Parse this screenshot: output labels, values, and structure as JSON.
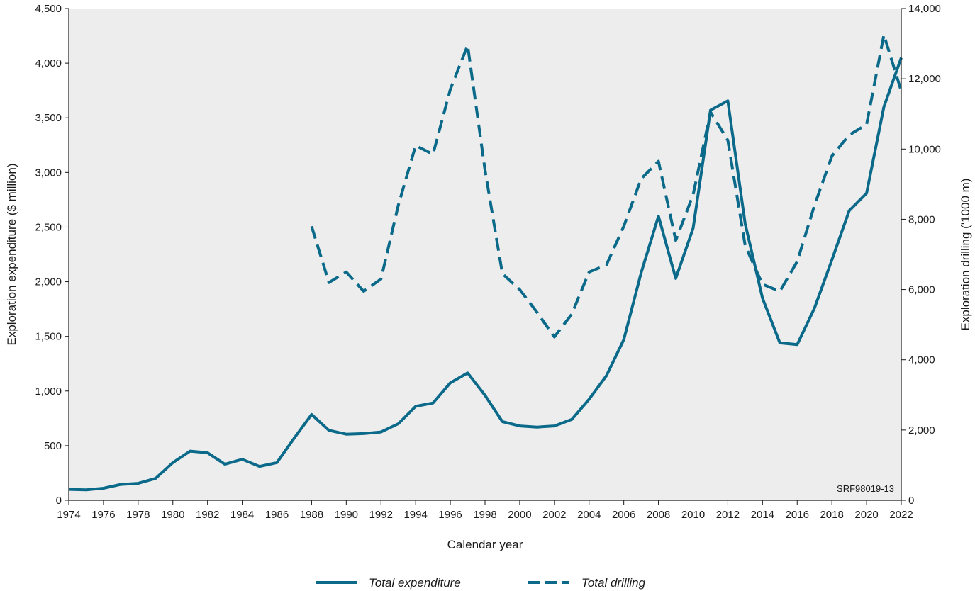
{
  "chart_data": {
    "type": "line",
    "title": "",
    "xlabel": "Calendar year",
    "ylabel_left": "Exploration expenditure ($ million)",
    "ylabel_right": "Exploration drilling ('1000 m)",
    "xlim": [
      1974,
      2022
    ],
    "ylim_left": [
      0,
      4500
    ],
    "ylim_right": [
      0,
      14000
    ],
    "x_ticks": [
      1974,
      1976,
      1978,
      1980,
      1982,
      1984,
      1986,
      1988,
      1990,
      1992,
      1994,
      1996,
      1998,
      2000,
      2002,
      2004,
      2006,
      2008,
      2010,
      2012,
      2014,
      2016,
      2018,
      2020,
      2022
    ],
    "y_ticks_left": [
      "0",
      "500",
      "1,000",
      "1,500",
      "2,000",
      "2,500",
      "3,000",
      "3,500",
      "4,000",
      "4,500"
    ],
    "y_ticks_left_values": [
      0,
      500,
      1000,
      1500,
      2000,
      2500,
      3000,
      3500,
      4000,
      4500
    ],
    "y_ticks_right": [
      "0",
      "2,000",
      "4,000",
      "6,000",
      "8,000",
      "10,000",
      "12,000",
      "14,000"
    ],
    "y_ticks_right_values": [
      0,
      2000,
      4000,
      6000,
      8000,
      10000,
      12000,
      14000
    ],
    "grid": false,
    "legend_position": "bottom-center",
    "series": [
      {
        "name": "Total expenditure",
        "axis": "left",
        "style": "solid",
        "color": "#0b6a8a",
        "x": [
          1974,
          1975,
          1976,
          1977,
          1978,
          1979,
          1980,
          1981,
          1982,
          1983,
          1984,
          1985,
          1986,
          1987,
          1988,
          1989,
          1990,
          1991,
          1992,
          1993,
          1994,
          1995,
          1996,
          1997,
          1998,
          1999,
          2000,
          2001,
          2002,
          2003,
          2004,
          2005,
          2006,
          2007,
          2008,
          2009,
          2010,
          2011,
          2012,
          2013,
          2014,
          2015,
          2016,
          2017,
          2018,
          2019,
          2020,
          2021,
          2022
        ],
        "values": [
          100,
          95,
          110,
          145,
          155,
          200,
          345,
          450,
          435,
          330,
          375,
          310,
          345,
          570,
          785,
          640,
          605,
          610,
          625,
          700,
          860,
          890,
          1075,
          1165,
          960,
          720,
          680,
          670,
          680,
          740,
          925,
          1140,
          1470,
          2080,
          2600,
          2030,
          2490,
          3570,
          3655,
          2530,
          1850,
          1440,
          1425,
          1760,
          2200,
          2650,
          2810,
          3600,
          4050
        ]
      },
      {
        "name": "Total drilling",
        "axis": "right",
        "style": "dashed",
        "color": "#0b6a8a",
        "x": [
          1988,
          1989,
          1990,
          1991,
          1992,
          1993,
          1994,
          1995,
          1996,
          1997,
          1998,
          1999,
          2000,
          2001,
          2002,
          2003,
          2004,
          2005,
          2006,
          2007,
          2008,
          2009,
          2010,
          2011,
          2012,
          2013,
          2014,
          2015,
          2016,
          2017,
          2018,
          2019,
          2020,
          2021,
          2022
        ],
        "values": [
          7800,
          6200,
          6500,
          5950,
          6300,
          8400,
          10100,
          9850,
          11700,
          12950,
          9400,
          6450,
          6000,
          5350,
          4650,
          5300,
          6500,
          6700,
          7800,
          9150,
          9650,
          7400,
          8700,
          11050,
          10250,
          7250,
          6150,
          5950,
          6800,
          8400,
          9800,
          10400,
          10700,
          13250,
          11650
        ]
      }
    ],
    "annotation": "SRF98019-13"
  }
}
